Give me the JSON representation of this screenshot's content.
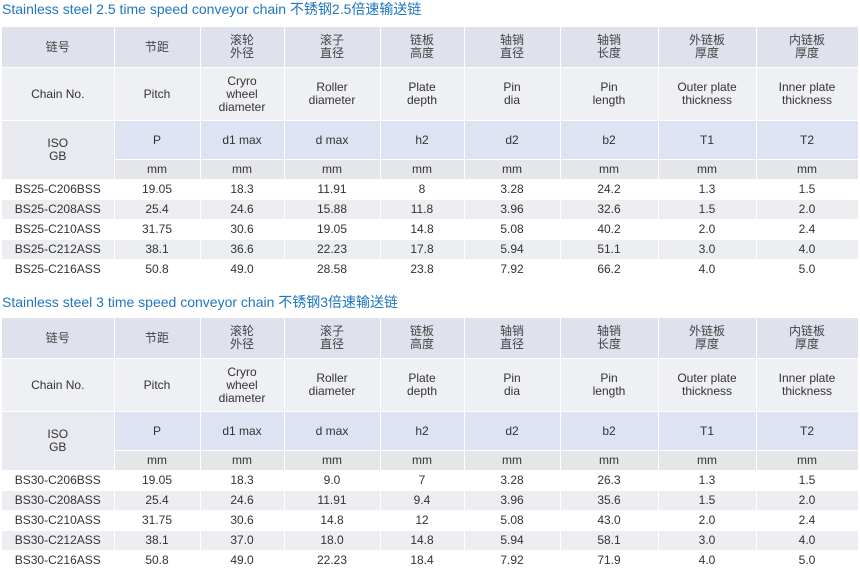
{
  "columns": [
    {
      "cn": [
        "链号"
      ],
      "en": [
        "Chain No."
      ]
    },
    {
      "cn": [
        "节距"
      ],
      "en": [
        "Pitch"
      ],
      "symbol": "P",
      "unit": "mm"
    },
    {
      "cn": [
        "滚轮",
        "外径"
      ],
      "en": [
        "Cryro",
        "wheel",
        "diameter"
      ],
      "symbol": "d1 max",
      "unit": "mm"
    },
    {
      "cn": [
        "滚子",
        "直径"
      ],
      "en": [
        "Roller",
        "diameter"
      ],
      "symbol": "d max",
      "unit": "mm"
    },
    {
      "cn": [
        "链板",
        "高度"
      ],
      "en": [
        "Plate",
        "depth"
      ],
      "symbol": "h2",
      "unit": "mm"
    },
    {
      "cn": [
        "轴销",
        "直径"
      ],
      "en": [
        "Pin",
        "dia"
      ],
      "symbol": "d2",
      "unit": "mm"
    },
    {
      "cn": [
        "轴销",
        "长度"
      ],
      "en": [
        "Pin",
        "length"
      ],
      "symbol": "b2",
      "unit": "mm"
    },
    {
      "cn": [
        "外链板",
        "厚度"
      ],
      "en": [
        "Outer plate",
        "thickness"
      ],
      "symbol": "T1",
      "unit": "mm"
    },
    {
      "cn": [
        "内链板",
        "厚度"
      ],
      "en": [
        "Inner plate",
        "thickness"
      ],
      "symbol": "T2",
      "unit": "mm"
    }
  ],
  "standards": [
    "ISO",
    "GB"
  ],
  "sections": [
    {
      "title": "Stainless steel 2.5 time speed conveyor chain 不锈钢2.5倍速输送链",
      "rows": [
        [
          "BS25-C206BSS",
          "19.05",
          "18.3",
          "11.91",
          "8",
          "3.28",
          "24.2",
          "1.3",
          "1.5"
        ],
        [
          "BS25-C208ASS",
          "25.4",
          "24.6",
          "15.88",
          "11.8",
          "3.96",
          "32.6",
          "1.5",
          "2.0"
        ],
        [
          "BS25-C210ASS",
          "31.75",
          "30.6",
          "19.05",
          "14.8",
          "5.08",
          "40.2",
          "2.0",
          "2.4"
        ],
        [
          "BS25-C212ASS",
          "38.1",
          "36.6",
          "22.23",
          "17.8",
          "5.94",
          "51.1",
          "3.0",
          "4.0"
        ],
        [
          "BS25-C216ASS",
          "50.8",
          "49.0",
          "28.58",
          "23.8",
          "7.92",
          "66.2",
          "4.0",
          "5.0"
        ]
      ]
    },
    {
      "title": "Stainless steel 3 time speed conveyor chain 不锈钢3倍速输送链",
      "rows": [
        [
          "BS30-C206BSS",
          "19.05",
          "18.3",
          "9.0",
          "7",
          "3.28",
          "26.3",
          "1.3",
          "1.5"
        ],
        [
          "BS30-C208ASS",
          "25.4",
          "24.6",
          "11.91",
          "9.4",
          "3.96",
          "35.6",
          "1.5",
          "2.0"
        ],
        [
          "BS30-C210ASS",
          "31.75",
          "30.6",
          "14.8",
          "12",
          "5.08",
          "43.0",
          "2.0",
          "2.4"
        ],
        [
          "BS30-C212ASS",
          "38.1",
          "37.0",
          "18.0",
          "14.8",
          "5.94",
          "58.1",
          "3.0",
          "4.0"
        ],
        [
          "BS30-C216ASS",
          "50.8",
          "49.0",
          "22.23",
          "18.4",
          "7.92",
          "71.9",
          "4.0",
          "5.0"
        ]
      ]
    }
  ]
}
